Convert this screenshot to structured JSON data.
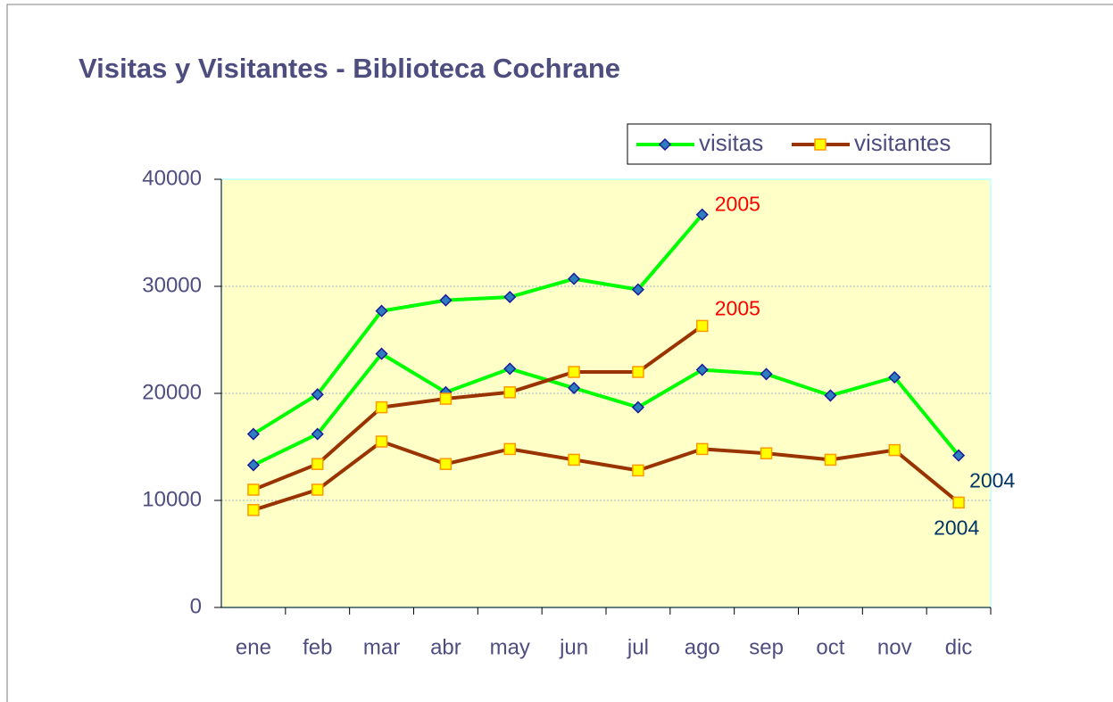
{
  "chart_data": {
    "type": "line",
    "title": "Visitas y Visitantes - Biblioteca Cochrane",
    "categories": [
      "ene",
      "feb",
      "mar",
      "abr",
      "may",
      "jun",
      "jul",
      "ago",
      "sep",
      "oct",
      "nov",
      "dic"
    ],
    "ylim": [
      0,
      40000
    ],
    "yticks": [
      0,
      10000,
      20000,
      30000,
      40000
    ],
    "grid": true,
    "legend": "top-right",
    "series": [
      {
        "name": "visitas",
        "color": "#00ff00",
        "marker": "diamond",
        "marker_color": "#2e7dbf",
        "marker_edge": "#1a1a99",
        "lines": [
          {
            "label": "2005",
            "label_color": "#ff0000",
            "values": [
              16200,
              19900,
              27700,
              28700,
              29000,
              30700,
              29700,
              36700,
              null,
              null,
              null,
              null
            ]
          },
          {
            "label": "2004",
            "label_color": "#003366",
            "values": [
              13300,
              16200,
              23700,
              20100,
              22300,
              20500,
              18700,
              22200,
              21800,
              19800,
              21500,
              14200
            ]
          }
        ]
      },
      {
        "name": "visitantes",
        "color": "#993300",
        "marker": "square",
        "marker_color": "#ffff00",
        "marker_edge": "#ff9900",
        "lines": [
          {
            "label": "2005",
            "label_color": "#ff0000",
            "values": [
              11000,
              13400,
              18700,
              19500,
              20100,
              22000,
              22000,
              26300,
              null,
              null,
              null,
              null
            ]
          },
          {
            "label": "2004",
            "label_color": "#003366",
            "values": [
              9100,
              11000,
              15500,
              13400,
              14800,
              13800,
              12800,
              14800,
              14400,
              13800,
              14700,
              9800
            ]
          }
        ]
      }
    ]
  }
}
